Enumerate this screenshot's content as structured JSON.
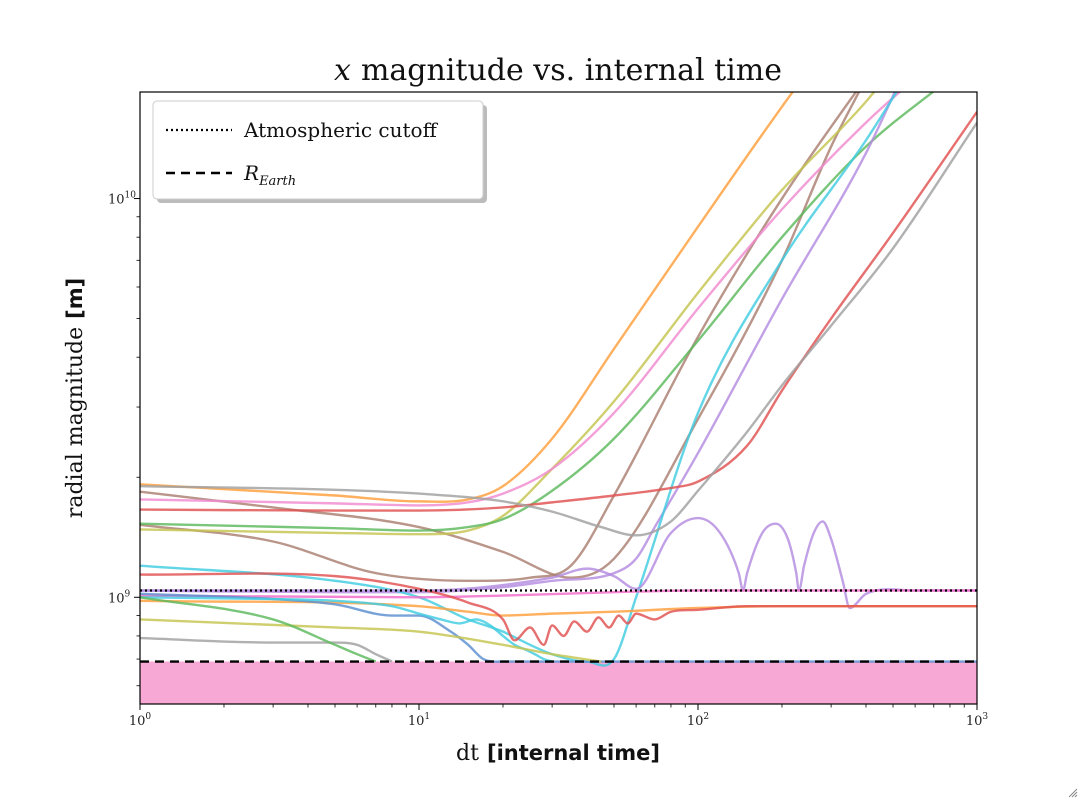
{
  "chart_data": {
    "type": "line",
    "title": {
      "vec": "x",
      "text": "magnitude vs. internal time"
    },
    "xlabel": {
      "plain": "dt",
      "bold": "[internal time]"
    },
    "ylabel": {
      "plain": "radial magnitude",
      "bold": "[m]"
    },
    "xscale": "log",
    "yscale": "log",
    "xlim": [
      1,
      1000
    ],
    "ylim": [
      540000000,
      18500000000
    ],
    "xticks": [
      {
        "value": 1,
        "base": "10",
        "exp": "0"
      },
      {
        "value": 10,
        "base": "10",
        "exp": "1"
      },
      {
        "value": 100,
        "base": "10",
        "exp": "2"
      },
      {
        "value": 1000,
        "base": "10",
        "exp": "3"
      }
    ],
    "yticks": [
      {
        "value": 1000000000,
        "base": "10",
        "exp": "9"
      },
      {
        "value": 10000000000,
        "base": "10",
        "exp": "10"
      }
    ],
    "legend": {
      "position": "top-left",
      "entries": [
        {
          "style": "dotted",
          "label": "Atmospheric cutoff"
        },
        {
          "style": "dashed",
          "label_main": "R",
          "label_sub": "Earth"
        }
      ]
    },
    "reference_lines": {
      "atmospheric_cutoff": 1040000000,
      "earth_radius": 690000000
    },
    "earth_fill_color": "#f8a8d4",
    "series": [
      {
        "color": "#ff9f3a",
        "x": [
          1,
          5,
          10,
          15,
          20,
          30,
          50,
          100,
          200,
          300
        ],
        "y": [
          1920000000,
          1800000000,
          1740000000,
          1760000000,
          1900000000,
          2500000000,
          4200000000,
          8500000000,
          17000000000,
          25000000000
        ]
      },
      {
        "color": "#aa7e70",
        "x": [
          1,
          3,
          10,
          20,
          35,
          50,
          100,
          200,
          300,
          400
        ],
        "y": [
          1840000000,
          1680000000,
          1500000000,
          1300000000,
          1120000000,
          1250000000,
          2800000000,
          7000000000,
          13500000000,
          20000000000
        ]
      },
      {
        "color": "#aa7e70",
        "x": [
          1,
          3,
          7,
          15,
          25,
          35,
          50,
          100,
          200,
          500
        ],
        "y": [
          1520000000,
          1380000000,
          1150000000,
          1100000000,
          1120000000,
          1200000000,
          1800000000,
          4500000000,
          10000000000,
          25000000000
        ]
      },
      {
        "color": "#c4c44f",
        "x": [
          1,
          5,
          10,
          15,
          20,
          30,
          50,
          100,
          200,
          400,
          600
        ],
        "y": [
          1480000000,
          1450000000,
          1440000000,
          1470000000,
          1600000000,
          2100000000,
          3100000000,
          5800000000,
          10500000000,
          17500000000,
          25000000000
        ]
      },
      {
        "color": "#f08ad0",
        "x": [
          1,
          5,
          10,
          15,
          20,
          30,
          50,
          100,
          200,
          400,
          700
        ],
        "y": [
          1760000000,
          1720000000,
          1700000000,
          1730000000,
          1820000000,
          2100000000,
          2900000000,
          5300000000,
          9400000000,
          15500000000,
          22000000000
        ]
      },
      {
        "color": "#5cb85c",
        "x": [
          1,
          5,
          10,
          15,
          20,
          30,
          50,
          100,
          200,
          400,
          800
        ],
        "y": [
          1530000000,
          1490000000,
          1470000000,
          1500000000,
          1570000000,
          1850000000,
          2500000000,
          4400000000,
          8000000000,
          13500000000,
          20000000000
        ]
      },
      {
        "color": "#b38be0",
        "x": [
          1,
          5,
          10,
          20,
          30,
          50,
          60,
          70,
          100,
          200,
          400,
          600
        ],
        "y": [
          1040000000,
          1030000000,
          1030000000,
          1060000000,
          1100000000,
          1150000000,
          1250000000,
          1500000000,
          2300000000,
          5600000000,
          13000000000,
          24000000000
        ]
      },
      {
        "color": "#3fcce0",
        "x": [
          1,
          5,
          10,
          15,
          20,
          25,
          30,
          40,
          50,
          60,
          100,
          200,
          400,
          600
        ],
        "y": [
          1200000000,
          1100000000,
          1000000000,
          880000000,
          820000000,
          760000000,
          720000000,
          690000000,
          700000000,
          1000000000,
          2900000000,
          7000000000,
          14000000000,
          22000000000
        ]
      },
      {
        "color": "#e05050",
        "x": [
          1,
          5,
          10,
          20,
          30,
          50,
          80,
          100,
          150,
          200,
          300,
          500,
          1000
        ],
        "y": [
          1660000000,
          1650000000,
          1650000000,
          1680000000,
          1730000000,
          1800000000,
          1880000000,
          1950000000,
          2400000000,
          3300000000,
          5000000000,
          8200000000,
          16500000000
        ]
      },
      {
        "color": "#a0a0a0",
        "x": [
          1,
          5,
          10,
          20,
          30,
          45,
          60,
          80,
          100,
          150,
          200,
          300,
          500,
          1000
        ],
        "y": [
          1900000000,
          1860000000,
          1820000000,
          1740000000,
          1640000000,
          1500000000,
          1430000000,
          1550000000,
          1850000000,
          2600000000,
          3400000000,
          4800000000,
          7500000000,
          15500000000
        ]
      },
      {
        "color": "#b38be0",
        "x": [
          1,
          10,
          30,
          40,
          50,
          60,
          80,
          100,
          120,
          140,
          145,
          150,
          170,
          190,
          210,
          225,
          230,
          240,
          260,
          280,
          300,
          330,
          350,
          400,
          600,
          1000
        ],
        "y": [
          1040000000,
          1040000000,
          1120000000,
          1180000000,
          1130000000,
          1050000000,
          1450000000,
          1580000000,
          1450000000,
          1150000000,
          1040000000,
          1150000000,
          1450000000,
          1530000000,
          1400000000,
          1150000000,
          1040000000,
          1200000000,
          1450000000,
          1550000000,
          1400000000,
          1100000000,
          940000000,
          1020000000,
          1040000000,
          1040000000
        ]
      },
      {
        "color": "#f06ac8",
        "x": [
          1,
          10,
          20,
          50,
          100,
          200,
          500,
          1000
        ],
        "y": [
          1010000000,
          1000000000,
          1010000000,
          1030000000,
          1040000000,
          1040000000,
          1040000000,
          1040000000
        ]
      },
      {
        "color": "#ff9f3a",
        "x": [
          1,
          10,
          15,
          20,
          30,
          50,
          100,
          200,
          500,
          1000
        ],
        "y": [
          980000000,
          950000000,
          920000000,
          900000000,
          910000000,
          920000000,
          940000000,
          950000000,
          950000000,
          950000000
        ]
      },
      {
        "color": "#e05050",
        "x": [
          1,
          5,
          10,
          15,
          20,
          22,
          25,
          28,
          30,
          33,
          36,
          40,
          44,
          48,
          52,
          56,
          60,
          70,
          80,
          100,
          150,
          200,
          500,
          1000
        ],
        "y": [
          1140000000,
          1130000000,
          1050000000,
          970000000,
          880000000,
          780000000,
          840000000,
          760000000,
          850000000,
          800000000,
          870000000,
          820000000,
          890000000,
          840000000,
          900000000,
          860000000,
          910000000,
          880000000,
          920000000,
          930000000,
          950000000,
          950000000,
          950000000,
          950000000
        ]
      },
      {
        "color": "#5b8fd0",
        "x": [
          1,
          3,
          5,
          8,
          10,
          13,
          15,
          17,
          20,
          30,
          40,
          50,
          1000
        ],
        "y": [
          1020000000,
          990000000,
          960000000,
          900000000,
          900000000,
          820000000,
          760000000,
          700000000,
          690000000,
          690000000,
          690000000,
          690000000,
          690000000
        ]
      },
      {
        "color": "#3fcce0",
        "x": [
          1,
          3,
          5,
          8,
          10,
          12,
          14,
          16,
          18,
          20,
          22,
          24,
          26,
          28,
          30
        ],
        "y": [
          1000000000,
          990000000,
          980000000,
          950000000,
          910000000,
          880000000,
          860000000,
          880000000,
          850000000,
          800000000,
          760000000,
          740000000,
          720000000,
          700000000,
          690000000
        ]
      },
      {
        "color": "#c4c44f",
        "x": [
          1,
          5,
          10,
          20,
          30,
          45
        ],
        "y": [
          880000000,
          840000000,
          820000000,
          760000000,
          720000000,
          690000000
        ]
      },
      {
        "color": "#a0a0a0",
        "x": [
          1,
          3,
          5,
          6,
          7,
          8
        ],
        "y": [
          790000000,
          770000000,
          770000000,
          760000000,
          720000000,
          690000000
        ]
      },
      {
        "color": "#5cb85c",
        "x": [
          1,
          3,
          5,
          6,
          7
        ],
        "y": [
          1000000000,
          880000000,
          760000000,
          720000000,
          690000000
        ]
      }
    ]
  }
}
